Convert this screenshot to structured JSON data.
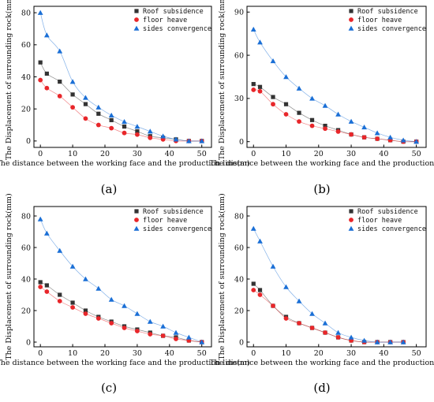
{
  "chart_data": [
    {
      "panel_label": "(a)",
      "type": "line",
      "xlabel": "The distance between the working face and the production line(m)",
      "ylabel": "The Displacement of surrounding rock(mm)",
      "xlim": [
        -2,
        53
      ],
      "ylim": [
        -4,
        84
      ],
      "xticks": [
        0,
        10,
        20,
        30,
        40,
        50
      ],
      "yticks": [
        0,
        20,
        40,
        60,
        80
      ],
      "legend": "top-right",
      "series": [
        {
          "name": "Roof subsidence",
          "marker": "square",
          "color": "#333333",
          "x": [
            0,
            2,
            6,
            10,
            14,
            18,
            22,
            26,
            30,
            34,
            38,
            42,
            46,
            50
          ],
          "y": [
            49,
            42,
            37,
            29,
            23,
            17,
            13,
            9,
            6,
            3,
            2,
            1,
            0,
            0
          ]
        },
        {
          "name": "floor heave",
          "marker": "circle",
          "color": "#e8262a",
          "x": [
            0,
            2,
            6,
            10,
            14,
            18,
            22,
            26,
            30,
            34,
            38,
            42,
            46,
            50
          ],
          "y": [
            38,
            33,
            28,
            21,
            14,
            10,
            8,
            5,
            4,
            2,
            1,
            0,
            0,
            0
          ]
        },
        {
          "name": "sides convergence",
          "marker": "triangle",
          "color": "#1a6fd6",
          "x": [
            0,
            2,
            6,
            10,
            14,
            18,
            22,
            26,
            30,
            34,
            38,
            42,
            46,
            50
          ],
          "y": [
            80,
            66,
            56,
            37,
            27,
            21,
            16,
            12,
            9,
            6,
            3,
            1,
            0,
            0
          ]
        }
      ]
    },
    {
      "panel_label": "(b)",
      "type": "line",
      "xlabel": "The distance between the working face and the production line(m)",
      "ylabel": "The Displacement of surrounding rock(mm)",
      "xlim": [
        -2,
        53
      ],
      "ylim": [
        -4,
        94
      ],
      "xticks": [
        0,
        10,
        20,
        30,
        40,
        50
      ],
      "yticks": [
        0,
        30,
        60,
        90
      ],
      "legend": "top-right",
      "series": [
        {
          "name": "Roof subsidence",
          "marker": "square",
          "color": "#333333",
          "x": [
            0,
            2,
            6,
            10,
            14,
            18,
            22,
            26,
            30,
            34,
            38,
            42,
            46,
            50
          ],
          "y": [
            40,
            38,
            31,
            26,
            20,
            15,
            11,
            8,
            5,
            3,
            2,
            1,
            0,
            0
          ]
        },
        {
          "name": "floor heave",
          "marker": "circle",
          "color": "#e8262a",
          "x": [
            0,
            2,
            6,
            10,
            14,
            18,
            22,
            26,
            30,
            34,
            38,
            42,
            46,
            50
          ],
          "y": [
            36,
            35,
            26,
            19,
            14,
            11,
            9,
            7,
            5,
            3,
            2,
            1,
            0,
            0
          ]
        },
        {
          "name": "sides convergence",
          "marker": "triangle",
          "color": "#1a6fd6",
          "x": [
            0,
            2,
            6,
            10,
            14,
            18,
            22,
            26,
            30,
            34,
            38,
            42,
            46,
            50
          ],
          "y": [
            78,
            69,
            56,
            45,
            37,
            30,
            25,
            19,
            14,
            10,
            6,
            3,
            1,
            0
          ]
        }
      ]
    },
    {
      "panel_label": "(c)",
      "type": "line",
      "xlabel": "The distance between the working face and the production line(m)",
      "ylabel": "The Displacement of surrounding rock(mm)",
      "xlim": [
        -2,
        53
      ],
      "ylim": [
        -3,
        86
      ],
      "xticks": [
        0,
        10,
        20,
        30,
        40,
        50
      ],
      "yticks": [
        0,
        20,
        40,
        60,
        80
      ],
      "legend": "top-right",
      "series": [
        {
          "name": "Roof subsidence",
          "marker": "square",
          "color": "#333333",
          "x": [
            0,
            2,
            6,
            10,
            14,
            18,
            22,
            26,
            30,
            34,
            38,
            42,
            46,
            50
          ],
          "y": [
            38,
            36,
            30,
            25,
            20,
            16,
            13,
            10,
            8,
            6,
            4,
            3,
            1,
            0
          ]
        },
        {
          "name": "floor heave",
          "marker": "circle",
          "color": "#e8262a",
          "x": [
            0,
            2,
            6,
            10,
            14,
            18,
            22,
            26,
            30,
            34,
            38,
            42,
            46,
            50
          ],
          "y": [
            35,
            32,
            26,
            22,
            18,
            15,
            12,
            9,
            7,
            5,
            4,
            2,
            1,
            0
          ]
        },
        {
          "name": "sides convergence",
          "marker": "triangle",
          "color": "#1a6fd6",
          "x": [
            0,
            2,
            6,
            10,
            14,
            18,
            22,
            26,
            30,
            34,
            38,
            42,
            46,
            50
          ],
          "y": [
            78,
            69,
            58,
            48,
            40,
            34,
            27,
            23,
            18,
            13,
            10,
            6,
            3,
            0
          ]
        }
      ]
    },
    {
      "panel_label": "(d)",
      "type": "line",
      "xlabel": "The distance between the working face and the production line(m)",
      "ylabel": "The Displacement of surrounding rock(mm)",
      "xlim": [
        -2,
        53
      ],
      "ylim": [
        -3,
        86
      ],
      "xticks": [
        0,
        10,
        20,
        30,
        40,
        50
      ],
      "yticks": [
        0,
        20,
        40,
        60,
        80
      ],
      "legend": "top-right",
      "series": [
        {
          "name": "Roof subsidence",
          "marker": "square",
          "color": "#333333",
          "x": [
            0,
            2,
            6,
            10,
            14,
            18,
            22,
            26,
            30,
            34,
            38,
            42,
            46
          ],
          "y": [
            37,
            33,
            23,
            16,
            12,
            9,
            6,
            3,
            1,
            0,
            0,
            0,
            0
          ]
        },
        {
          "name": "floor heave",
          "marker": "circle",
          "color": "#e8262a",
          "x": [
            0,
            2,
            6,
            10,
            14,
            18,
            22,
            26,
            30,
            34,
            38,
            42,
            46
          ],
          "y": [
            33,
            30,
            23,
            15,
            12,
            9,
            6,
            3,
            1,
            0,
            0,
            0,
            0
          ]
        },
        {
          "name": "sides convergence",
          "marker": "triangle",
          "color": "#1a6fd6",
          "x": [
            0,
            2,
            6,
            10,
            14,
            18,
            22,
            26,
            30,
            34,
            38,
            42,
            46
          ],
          "y": [
            72,
            64,
            48,
            35,
            26,
            18,
            12,
            6,
            3,
            1,
            0,
            0,
            0
          ]
        }
      ]
    }
  ]
}
